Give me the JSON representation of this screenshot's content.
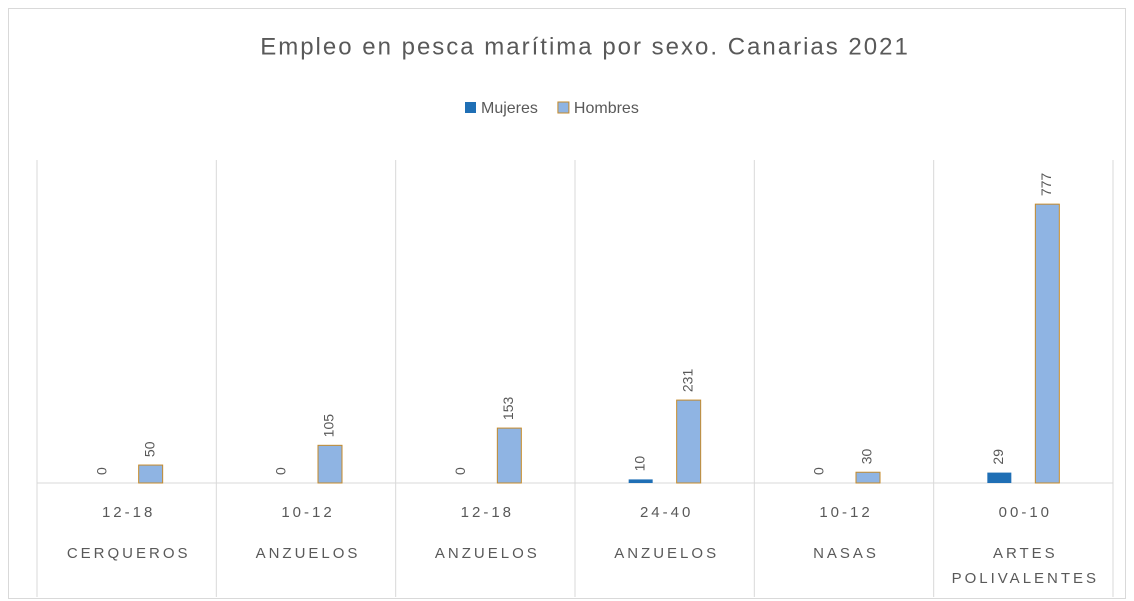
{
  "chart_data": {
    "type": "bar",
    "title": "Empleo en pesca marítima por sexo. Canarias 2021",
    "categories": [
      "12-18",
      "10-12",
      "12-18",
      "24-40",
      "10-12",
      "00-10"
    ],
    "groups": [
      "CERQUEROS",
      "ANZUELOS",
      "ANZUELOS",
      "ANZUELOS",
      "NASAS",
      "ARTES POLIVALENTES"
    ],
    "series": [
      {
        "name": "Mujeres",
        "color": "#1f6fb5",
        "values": [
          0,
          0,
          0,
          10,
          0,
          29
        ]
      },
      {
        "name": "Hombres",
        "color": "#8fb4e3",
        "edge": "#c58a2a",
        "values": [
          50,
          105,
          153,
          231,
          30,
          777
        ]
      }
    ],
    "ylim": [
      0,
      900
    ]
  }
}
